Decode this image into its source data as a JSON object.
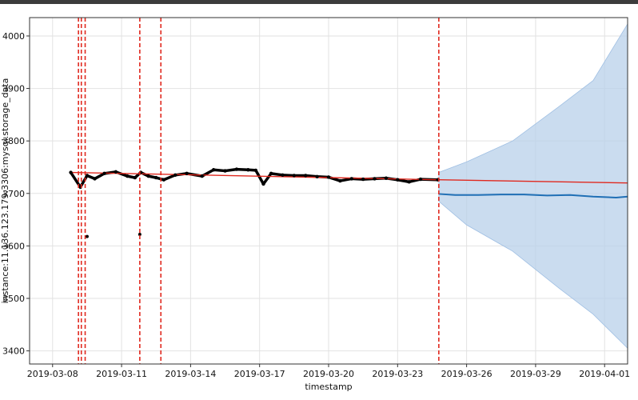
{
  "chart_data": {
    "type": "line",
    "title": "",
    "xlabel": "timestamp",
    "ylabel": "instance:11.136.123.179:3306:mysql.storage_data",
    "x_range": [
      "2019-03-07",
      "2019-04-02"
    ],
    "ylim": [
      3375,
      4035
    ],
    "x_ticks": [
      "2019-03-08",
      "2019-03-11",
      "2019-03-14",
      "2019-03-17",
      "2019-03-20",
      "2019-03-23",
      "2019-03-26",
      "2019-03-29",
      "2019-04-01"
    ],
    "y_ticks": [
      3400,
      3500,
      3600,
      3700,
      3800,
      3900,
      4000
    ],
    "grid": true,
    "colors": {
      "observed": "#000000",
      "forecast": "#1f6fb5",
      "uncertainty": "#b8d0ea",
      "trend": "#e0291f",
      "changepoint": "#e0291f"
    },
    "changepoints": [
      "2019-03-09 03:00",
      "2019-03-09 06:00",
      "2019-03-09 10:00",
      "2019-03-11 19:00",
      "2019-03-12 17:00",
      "2019-03-24 19:00"
    ],
    "observed": {
      "name": "",
      "x": [
        "2019-03-08 19:00",
        "2019-03-09 05:00",
        "2019-03-09 12:00",
        "2019-03-09 20:00",
        "2019-03-10 06:00",
        "2019-03-10 18:00",
        "2019-03-11 06:00",
        "2019-03-11 14:00",
        "2019-03-11 20:00",
        "2019-03-12 04:00",
        "2019-03-12 12:00",
        "2019-03-12 20:00",
        "2019-03-13 08:00",
        "2019-03-13 20:00",
        "2019-03-14 12:00",
        "2019-03-15 00:00",
        "2019-03-15 12:00",
        "2019-03-16 00:00",
        "2019-03-16 12:00",
        "2019-03-16 20:00",
        "2019-03-17 04:00",
        "2019-03-17 12:00",
        "2019-03-18 00:00",
        "2019-03-18 12:00",
        "2019-03-19 00:00",
        "2019-03-19 12:00",
        "2019-03-20 00:00",
        "2019-03-20 12:00",
        "2019-03-21 00:00",
        "2019-03-21 12:00",
        "2019-03-22 00:00",
        "2019-03-22 12:00",
        "2019-03-23 00:00",
        "2019-03-23 12:00",
        "2019-03-24 00:00",
        "2019-03-24 18:00"
      ],
      "values": [
        3740,
        3712,
        3734,
        3728,
        3738,
        3741,
        3733,
        3730,
        3740,
        3733,
        3730,
        3726,
        3735,
        3738,
        3733,
        3745,
        3743,
        3746,
        3745,
        3744,
        3718,
        3738,
        3735,
        3734,
        3734,
        3732,
        3731,
        3724,
        3728,
        3727,
        3728,
        3729,
        3726,
        3722,
        3727,
        3726
      ]
    },
    "outliers": {
      "x": [
        "2019-03-09 12:00",
        "2019-03-11 19:00"
      ],
      "values": [
        3618,
        3622
      ]
    },
    "trend": {
      "name": "",
      "x": [
        "2019-03-08 19:00",
        "2019-03-24 19:00",
        "2019-04-02 00:00"
      ],
      "values": [
        3740,
        3726,
        3720
      ]
    },
    "forecast": {
      "name": "",
      "x": [
        "2019-03-24 19:00",
        "2019-03-25 12:00",
        "2019-03-26 12:00",
        "2019-03-27 12:00",
        "2019-03-28 12:00",
        "2019-03-29 12:00",
        "2019-03-30 12:00",
        "2019-03-31 12:00",
        "2019-04-01 12:00",
        "2019-04-02 00:00"
      ],
      "values": [
        3699,
        3697,
        3697,
        3698,
        3698,
        3696,
        3697,
        3694,
        3692,
        3694
      ]
    },
    "band_upper": {
      "x": [
        "2019-03-24 19:00",
        "2019-03-26 00:00",
        "2019-03-28 00:00",
        "2019-03-30 00:00",
        "2019-03-31 12:00",
        "2019-04-02 00:00"
      ],
      "values": [
        3740,
        3760,
        3800,
        3865,
        3915,
        4023
      ]
    },
    "band_lower": {
      "x": [
        "2019-03-24 19:00",
        "2019-03-26 00:00",
        "2019-03-28 00:00",
        "2019-03-30 00:00",
        "2019-03-31 12:00",
        "2019-04-02 00:00"
      ],
      "values": [
        3685,
        3640,
        3590,
        3520,
        3470,
        3405
      ]
    }
  }
}
